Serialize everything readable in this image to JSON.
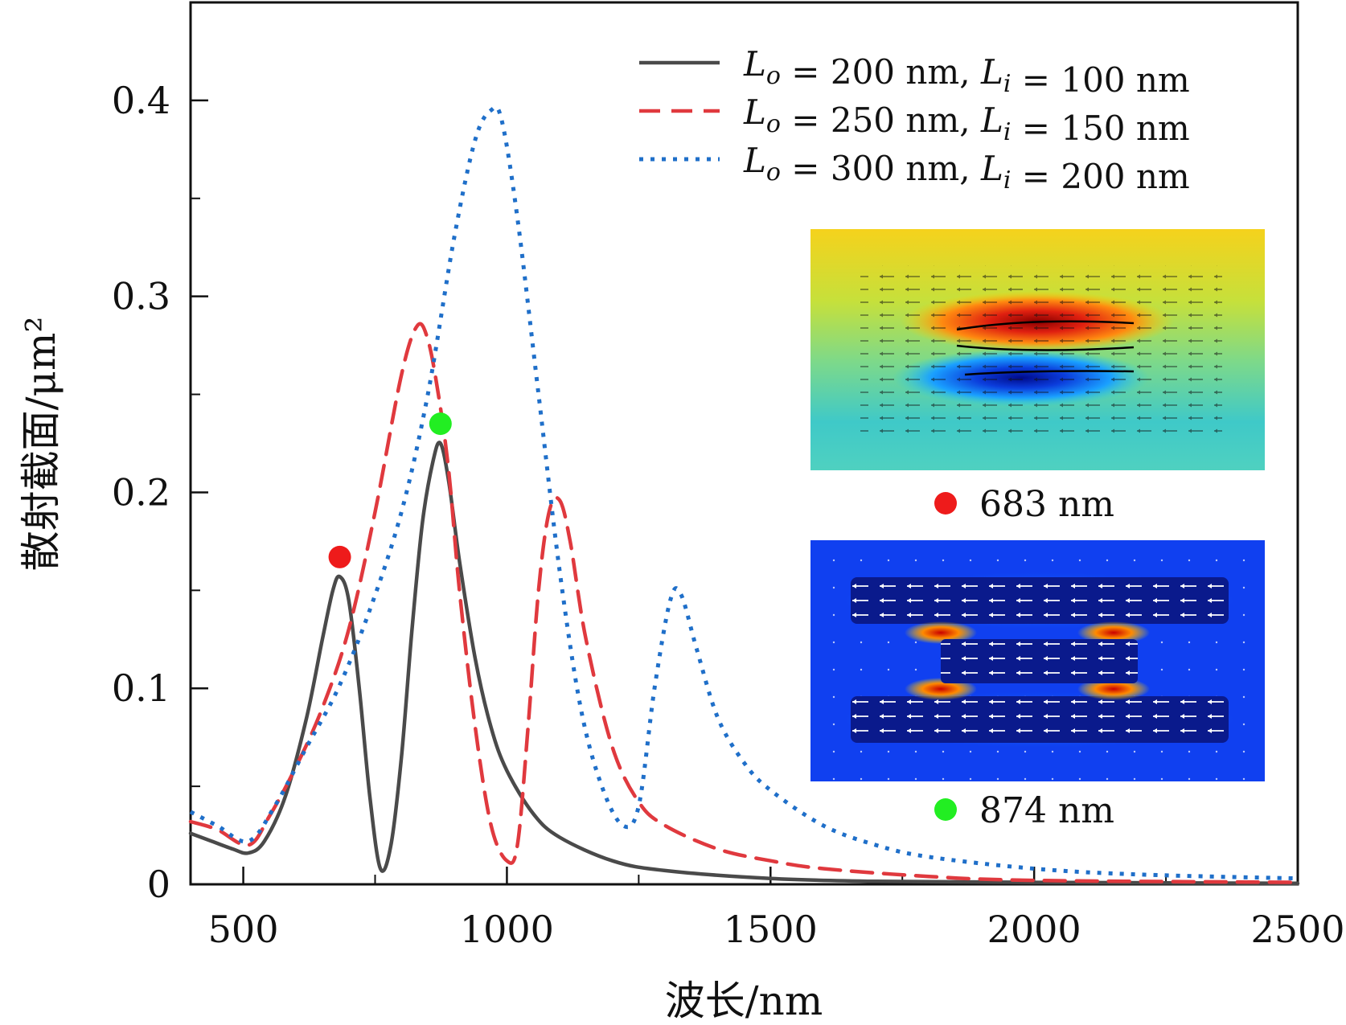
{
  "chart_data": {
    "type": "line",
    "xlabel": "波长/nm",
    "ylabel": "散射截面/μm²",
    "xlim": [
      400,
      2500
    ],
    "ylim": [
      0,
      0.45
    ],
    "xticks": [
      500,
      1000,
      1500,
      2000,
      2500
    ],
    "yticks": [
      0,
      0.1,
      0.2,
      0.3,
      0.4
    ],
    "xtick_labels": [
      "500",
      "1000",
      "1500",
      "2000",
      "2500"
    ],
    "ytick_labels": [
      "0",
      "0.1",
      "0.2",
      "0.3",
      "0.4"
    ],
    "legend_position": "top-right",
    "series": [
      {
        "name": "Lo = 200 nm, Li = 100 nm",
        "legend": {
          "var1": "L",
          "sub1": "o",
          "val1": "= 200 nm,",
          "var2": "L",
          "sub2": "i",
          "val2": "= 100 nm"
        },
        "color": "#4a4a4a",
        "style": "solid",
        "x": [
          400,
          440,
          480,
          510,
          540,
          580,
          620,
          650,
          670,
          683,
          700,
          720,
          740,
          760,
          780,
          800,
          820,
          840,
          860,
          874,
          890,
          910,
          940,
          970,
          1000,
          1050,
          1100,
          1200,
          1300,
          1500,
          1700,
          2000,
          2500
        ],
        "y": [
          0.026,
          0.022,
          0.018,
          0.016,
          0.022,
          0.045,
          0.085,
          0.125,
          0.15,
          0.157,
          0.145,
          0.1,
          0.045,
          0.008,
          0.02,
          0.065,
          0.13,
          0.185,
          0.216,
          0.225,
          0.205,
          0.165,
          0.115,
          0.08,
          0.058,
          0.036,
          0.024,
          0.012,
          0.007,
          0.003,
          0.0015,
          0.001,
          0.0005
        ]
      },
      {
        "name": "Lo = 250 nm, Li = 150 nm",
        "legend": {
          "var1": "L",
          "sub1": "o",
          "val1": "= 250 nm,",
          "var2": "L",
          "sub2": "i",
          "val2": "= 150 nm"
        },
        "color": "#e0393e",
        "style": "dashed",
        "x": [
          400,
          450,
          510,
          550,
          600,
          650,
          700,
          750,
          800,
          830,
          850,
          870,
          890,
          910,
          940,
          970,
          1000,
          1020,
          1040,
          1060,
          1080,
          1100,
          1120,
          1150,
          1200,
          1250,
          1300,
          1400,
          1500,
          1600,
          1800,
          2000,
          2500
        ],
        "y": [
          0.032,
          0.028,
          0.02,
          0.035,
          0.06,
          0.09,
          0.13,
          0.19,
          0.26,
          0.285,
          0.278,
          0.25,
          0.21,
          0.15,
          0.08,
          0.03,
          0.012,
          0.02,
          0.08,
          0.15,
          0.19,
          0.196,
          0.175,
          0.125,
          0.07,
          0.042,
          0.03,
          0.018,
          0.012,
          0.008,
          0.004,
          0.002,
          0.001
        ]
      },
      {
        "name": "Lo = 300 nm, Li = 200 nm",
        "legend": {
          "var1": "L",
          "sub1": "o",
          "val1": "= 300 nm,",
          "var2": "L",
          "sub2": "i",
          "val2": "= 200 nm"
        },
        "color": "#1f6fc9",
        "style": "dotted",
        "x": [
          400,
          450,
          510,
          560,
          620,
          680,
          740,
          800,
          850,
          900,
          940,
          970,
          990,
          1020,
          1060,
          1100,
          1140,
          1180,
          1220,
          1250,
          1280,
          1310,
          1330,
          1360,
          1400,
          1450,
          1500,
          1600,
          1700,
          1800,
          2000,
          2200,
          2500
        ],
        "y": [
          0.037,
          0.03,
          0.022,
          0.04,
          0.07,
          0.1,
          0.14,
          0.19,
          0.25,
          0.33,
          0.38,
          0.395,
          0.39,
          0.34,
          0.25,
          0.16,
          0.09,
          0.05,
          0.03,
          0.04,
          0.1,
          0.145,
          0.148,
          0.12,
          0.085,
          0.062,
          0.048,
          0.03,
          0.02,
          0.014,
          0.008,
          0.005,
          0.003
        ]
      }
    ],
    "markers": [
      {
        "x": 683,
        "y": 0.167,
        "color": "#ee1b1b"
      },
      {
        "x": 874,
        "y": 0.235,
        "color": "#22ee22"
      }
    ],
    "insets": [
      {
        "label": "683 nm",
        "marker_color": "#ee1b1b"
      },
      {
        "label": "874 nm",
        "marker_color": "#22ee22"
      }
    ]
  }
}
